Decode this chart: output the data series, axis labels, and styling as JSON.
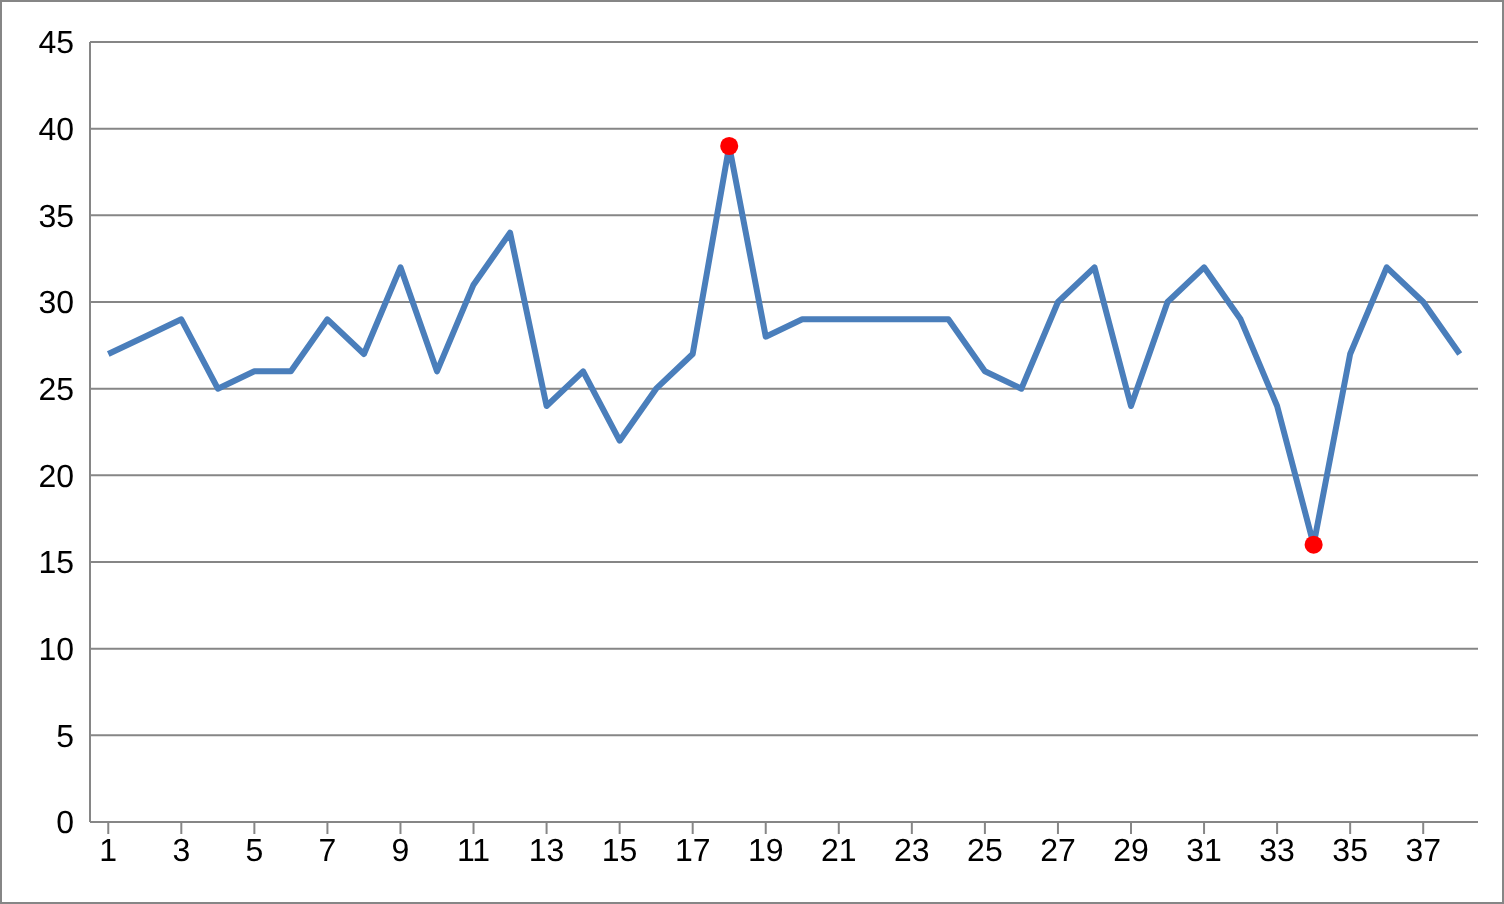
{
  "chart_data": {
    "type": "line",
    "x": [
      1,
      2,
      3,
      4,
      5,
      6,
      7,
      8,
      9,
      10,
      11,
      12,
      13,
      14,
      15,
      16,
      17,
      18,
      19,
      20,
      21,
      22,
      23,
      24,
      25,
      26,
      27,
      28,
      29,
      30,
      31,
      32,
      33,
      34,
      35,
      36,
      37,
      38
    ],
    "series": [
      {
        "type": "line",
        "color": "#4a7ebb",
        "marker": "none",
        "values": [
          27,
          28,
          29,
          25,
          26,
          26,
          29,
          27,
          32,
          26,
          31,
          34,
          24,
          26,
          22,
          25,
          27,
          39,
          28,
          29,
          29,
          29,
          29,
          29,
          26,
          25,
          30,
          32,
          24,
          30,
          32,
          29,
          24,
          16,
          27,
          32,
          30,
          27
        ]
      },
      {
        "type": "scatter",
        "color": "#ff0000",
        "marker": "circle",
        "x": [
          18,
          34
        ],
        "values": [
          39,
          16
        ]
      }
    ],
    "xlim": [
      0.5,
      38.5
    ],
    "xticks": [
      1,
      3,
      5,
      7,
      9,
      11,
      13,
      15,
      17,
      19,
      21,
      23,
      25,
      27,
      29,
      31,
      33,
      35,
      37
    ],
    "ylim": [
      0,
      45
    ],
    "yticks": [
      0,
      5,
      10,
      15,
      20,
      25,
      30,
      35,
      40,
      45
    ],
    "grid": "y",
    "legend": false
  }
}
